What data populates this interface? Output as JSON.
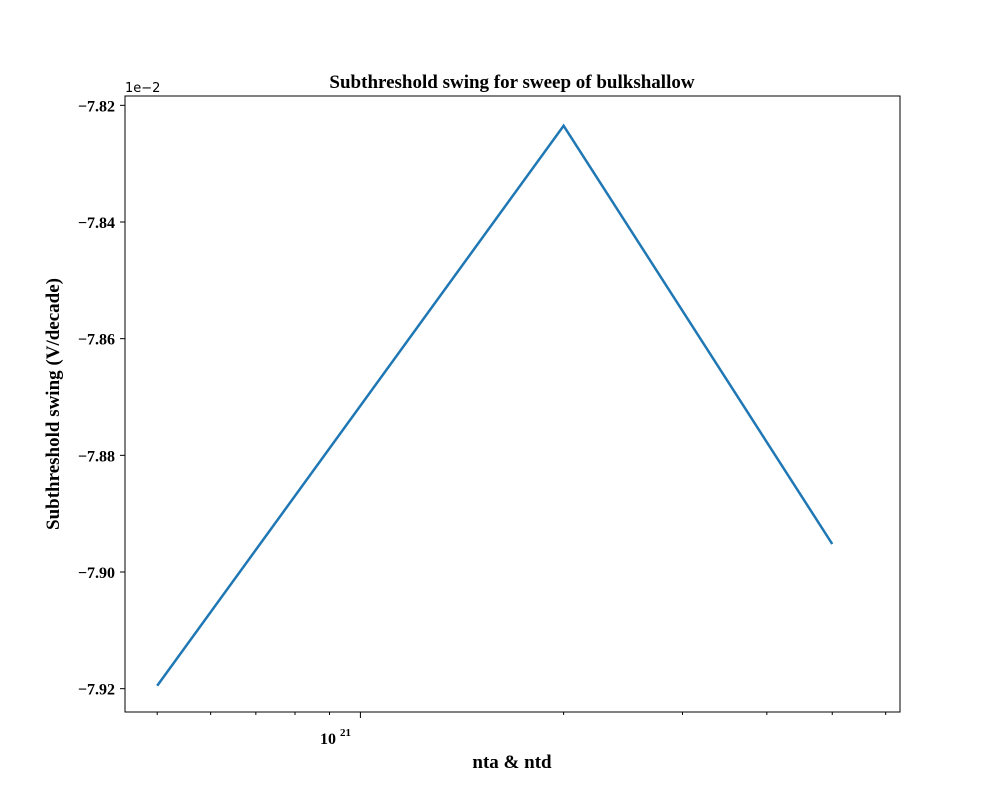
{
  "chart_data": {
    "type": "line",
    "title": "Subthreshold swing for sweep of bulkshallow",
    "xlabel": "nta & ntd",
    "ylabel": "Subthreshold swing (V/decade)",
    "x_scale": "log",
    "x_tick_label": {
      "base": "10",
      "exp": "21"
    },
    "y_offset_label": "1e−2",
    "y_ticks": [
      "−7.82",
      "−7.84",
      "−7.86",
      "−7.88",
      "−7.90",
      "−7.92"
    ],
    "y_tick_values": [
      -7.82,
      -7.84,
      -7.86,
      -7.88,
      -7.9,
      -7.92
    ],
    "ylim": [
      -7.924,
      -7.8184
    ],
    "xlim": [
      4.48e+20,
      6.3e+21
    ],
    "grid": false,
    "series": [
      {
        "x": [
          5e+20,
          2e+21,
          5e+21
        ],
        "values": [
          -7.9195,
          -7.8235,
          -7.8952
        ],
        "color": "#1f77b4"
      }
    ]
  }
}
